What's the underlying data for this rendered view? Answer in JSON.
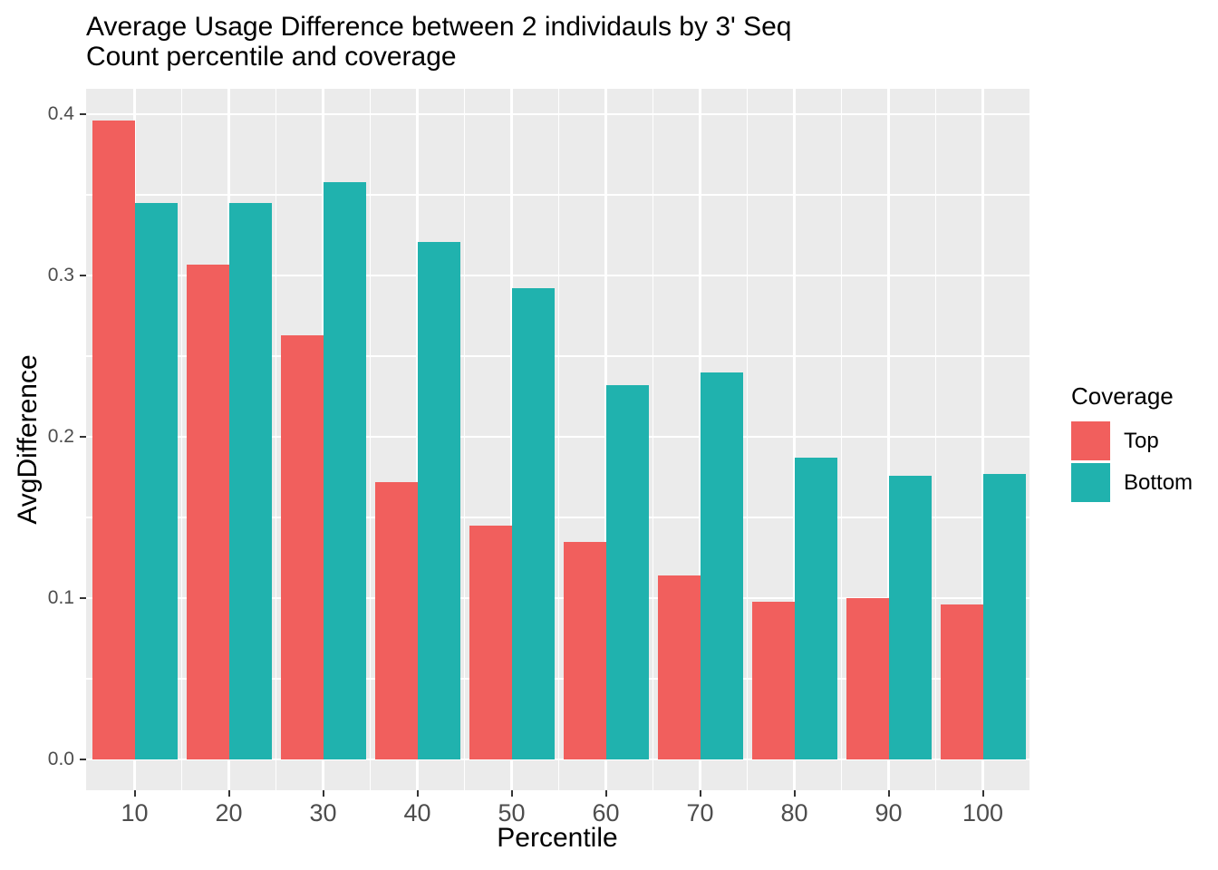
{
  "title": {
    "line1": "Average Usage Difference between 2 individauls by 3' Seq",
    "line2": "Count percentile and coverage"
  },
  "chart_data": {
    "type": "bar",
    "title": "Average Usage Difference between 2 individauls by 3' Seq Count percentile and coverage",
    "xlabel": "Percentile",
    "ylabel": "AvgDifference",
    "categories": [
      "10",
      "20",
      "30",
      "40",
      "50",
      "60",
      "70",
      "80",
      "90",
      "100"
    ],
    "series": [
      {
        "name": "Top",
        "color": "#F15F5D",
        "values": [
          0.396,
          0.307,
          0.263,
          0.172,
          0.145,
          0.135,
          0.114,
          0.098,
          0.1,
          0.096
        ]
      },
      {
        "name": "Bottom",
        "color": "#20B2AE",
        "values": [
          0.345,
          0.345,
          0.358,
          0.321,
          0.292,
          0.232,
          0.24,
          0.187,
          0.176,
          0.177
        ]
      }
    ],
    "ylim": [
      0,
      0.418
    ],
    "yticks": [
      0,
      0.1,
      0.2,
      0.3,
      0.4
    ],
    "ytick_labels": [
      "0.0",
      "0.1",
      "0.2",
      "0.3",
      "0.4"
    ],
    "yticks_minor": [
      0.05,
      0.15,
      0.25,
      0.35
    ],
    "legend_title": "Coverage",
    "legend_position": "right",
    "grid": true
  },
  "colors": {
    "panel_bg": "#EBEBEB",
    "grid": "#FFFFFF",
    "axis_text": "#4D4D4D",
    "tick_mark": "#333333",
    "title_text": "#000000"
  }
}
